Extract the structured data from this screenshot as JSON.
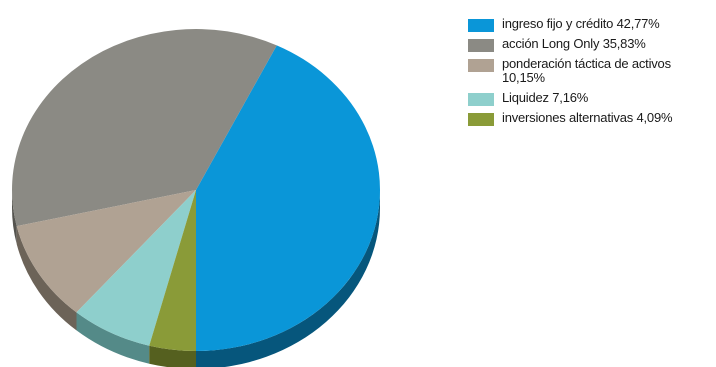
{
  "chart_data": {
    "type": "pie",
    "style": "3d",
    "title": "",
    "legend_position": "right",
    "slices": [
      {
        "label": "ingreso fijo y crédito",
        "value": 42.77,
        "value_text": "42,77%",
        "color": "#0a96d8",
        "side_color": "#06567c"
      },
      {
        "label": "acción Long Only",
        "value": 35.83,
        "value_text": "35,83%",
        "color": "#8b8a84",
        "side_color": "#55544f"
      },
      {
        "label": "ponderación táctica de activos",
        "value": 10.15,
        "value_text": "10,15%",
        "color": "#b0a293",
        "side_color": "#6c6358"
      },
      {
        "label": "Liquidez",
        "value": 7.16,
        "value_text": "7,16%",
        "color": "#8ecfcc",
        "side_color": "#548a88"
      },
      {
        "label": "inversiones alternativas",
        "value": 4.09,
        "value_text": "4,09%",
        "color": "#8a9b38",
        "side_color": "#55601f"
      }
    ]
  }
}
